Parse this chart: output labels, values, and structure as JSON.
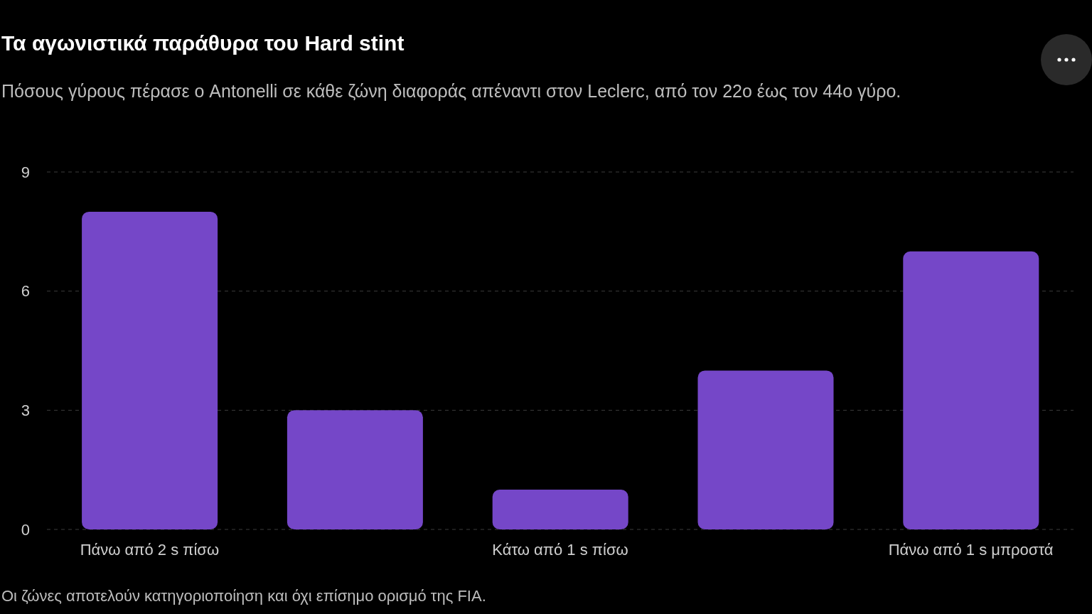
{
  "chart_data": {
    "type": "bar",
    "title": "Τα αγωνιστικά παράθυρα του Hard stint",
    "subtitle": "Πόσους γύρους πέρασε ο Antonelli σε κάθε ζώνη διαφοράς απέναντι στον Leclerc, από τον 22ο έως τον 44ο γύρο.",
    "categories": [
      "Πάνω από 2 s πίσω",
      null,
      "Κάτω από 1 s πίσω",
      null,
      "Πάνω από 1 s μπροστά"
    ],
    "values": [
      8,
      3,
      1,
      4,
      7
    ],
    "color": "#7547c8",
    "ylim": [
      0,
      9
    ],
    "yticks": [
      0,
      3,
      6,
      9
    ],
    "grid": "y",
    "annotations": [
      "Οι ζώνες αποτελούν κατηγοριοποίηση και όχι επίσημο ορισμό της FIA."
    ]
  }
}
